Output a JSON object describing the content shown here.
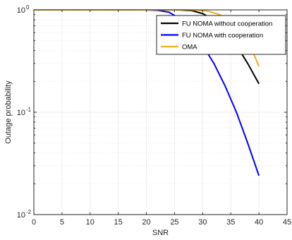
{
  "chart_data": {
    "type": "line",
    "title": "",
    "xlabel": "SNR",
    "ylabel": "Outage probability",
    "xlim": [
      0,
      45
    ],
    "ylim": [
      0.01,
      1
    ],
    "yscale": "log",
    "grid": true,
    "legend_position": "top-right",
    "x_ticks": [
      0,
      5,
      10,
      15,
      20,
      25,
      30,
      35,
      40,
      45
    ],
    "x_tick_labels": [
      "0",
      "5",
      "10",
      "15",
      "20",
      "25",
      "30",
      "35",
      "40",
      "45"
    ],
    "y_ticks": [
      0.01,
      0.1,
      1
    ],
    "y_tick_labels": [
      {
        "base": "10",
        "exp": "-2"
      },
      {
        "base": "10",
        "exp": "-1"
      },
      {
        "base": "10",
        "exp": "0"
      }
    ],
    "series": [
      {
        "name": "FU NOMA without cooperation",
        "color": "#000000",
        "x": [
          0,
          5,
          10,
          15,
          20,
          25,
          26,
          28,
          30,
          32,
          34,
          36,
          38,
          40
        ],
        "y": [
          1,
          1,
          1,
          1,
          1,
          1,
          0.998,
          0.985,
          0.92,
          0.8,
          0.63,
          0.45,
          0.3,
          0.19
        ]
      },
      {
        "name": "FU NOMA with cooperation",
        "color": "#0000ff",
        "x": [
          0,
          5,
          10,
          15,
          20,
          22,
          24,
          26,
          28,
          30,
          32,
          34,
          36,
          38,
          40
        ],
        "y": [
          1,
          1,
          1,
          1,
          1,
          0.99,
          0.95,
          0.82,
          0.63,
          0.45,
          0.3,
          0.18,
          0.1,
          0.05,
          0.024
        ]
      },
      {
        "name": "OMA",
        "color": "#edb120",
        "x": [
          0,
          5,
          10,
          15,
          20,
          25,
          27,
          29,
          31,
          33,
          35,
          37,
          39,
          40
        ],
        "y": [
          1,
          1,
          1,
          1,
          1,
          1,
          1,
          0.995,
          0.97,
          0.9,
          0.77,
          0.58,
          0.38,
          0.28
        ]
      }
    ]
  }
}
